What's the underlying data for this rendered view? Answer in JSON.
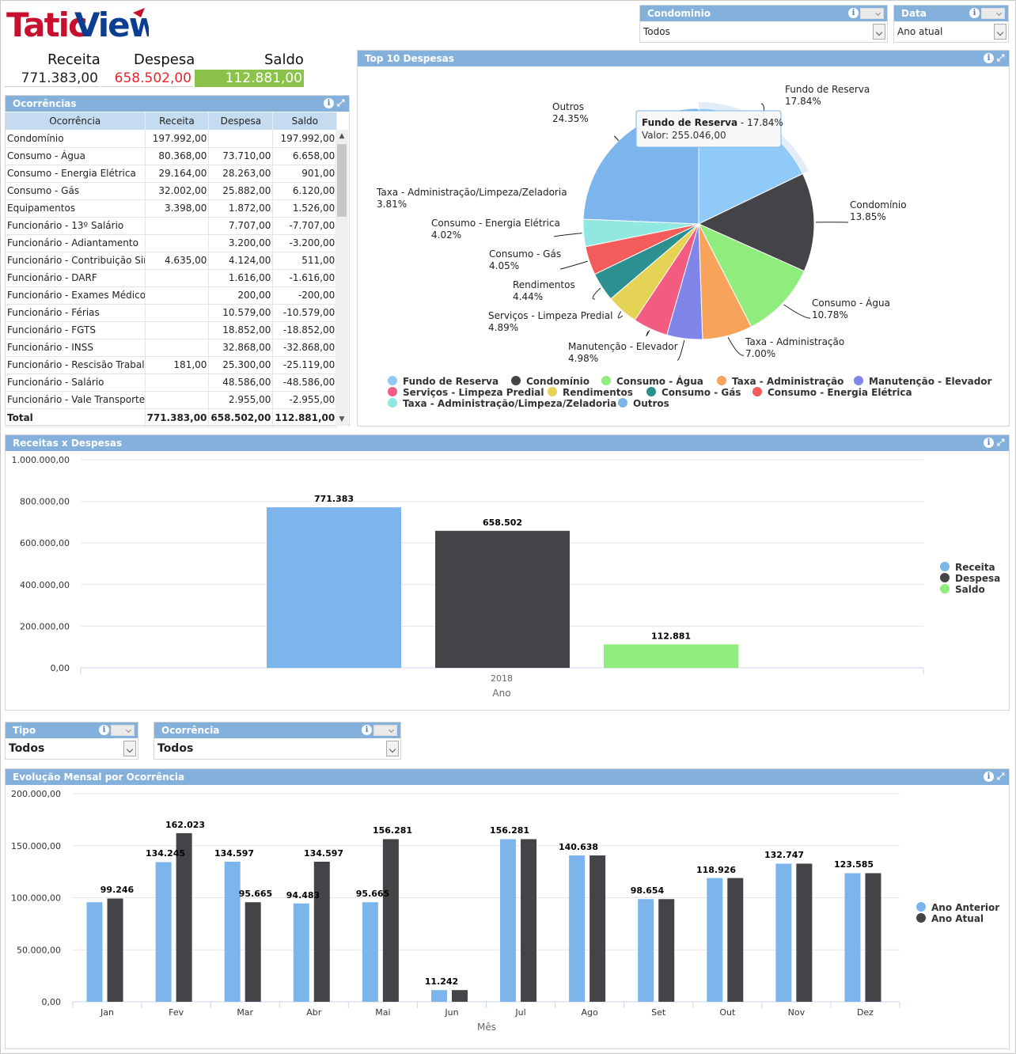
{
  "logo": {
    "part1": "Tatic",
    "part2": "View"
  },
  "filters": {
    "condominio": {
      "label": "Condominio",
      "value": "Todos"
    },
    "data": {
      "label": "Data",
      "value": "Ano atual"
    },
    "tipo": {
      "label": "Tipo",
      "value": "Todos"
    },
    "ocorrencia": {
      "label": "Ocorrência",
      "value": "Todos"
    }
  },
  "kpi": {
    "receita_label": "Receita",
    "receita_value": "771.383,00",
    "despesa_label": "Despesa",
    "despesa_value": "658.502,00",
    "saldo_label": "Saldo",
    "saldo_value": "112.881,00"
  },
  "panels": {
    "ocorrencias": "Ocorrências",
    "top10": "Top 10 Despesas",
    "receitas": "Receitas x Despesas",
    "evolucao": "Evolução Mensal por Ocorrência"
  },
  "icons": {
    "info": "info-icon",
    "expand": "expand-icon",
    "dropdown": "chevron-down-icon"
  },
  "table": {
    "headers": [
      "Ocorrência",
      "Receita",
      "Despesa",
      "Saldo"
    ],
    "rows": [
      [
        "Condomínio",
        "197.992,00",
        "",
        "197.992,00"
      ],
      [
        "Consumo - Água",
        "80.368,00",
        "73.710,00",
        "6.658,00"
      ],
      [
        "Consumo - Energia Elétrica",
        "29.164,00",
        "28.263,00",
        "901,00"
      ],
      [
        "Consumo - Gás",
        "32.002,00",
        "25.882,00",
        "6.120,00"
      ],
      [
        "Equipamentos",
        "3.398,00",
        "1.872,00",
        "1.526,00"
      ],
      [
        "Funcionário - 13º Salário",
        "",
        "7.707,00",
        "-7.707,00"
      ],
      [
        "Funcionário - Adiantamento",
        "",
        "3.200,00",
        "-3.200,00"
      ],
      [
        "Funcionário - Contribuição Sindic",
        "4.635,00",
        "4.124,00",
        "511,00"
      ],
      [
        "Funcionário - DARF",
        "",
        "1.616,00",
        "-1.616,00"
      ],
      [
        "Funcionário - Exames Médicos Pr",
        "",
        "200,00",
        "-200,00"
      ],
      [
        "Funcionário - Férias",
        "",
        "10.579,00",
        "-10.579,00"
      ],
      [
        "Funcionário - FGTS",
        "",
        "18.852,00",
        "-18.852,00"
      ],
      [
        "Funcionário - INSS",
        "",
        "32.868,00",
        "-32.868,00"
      ],
      [
        "Funcionário - Rescisão Trabalhist",
        "181,00",
        "25.300,00",
        "-25.119,00"
      ],
      [
        "Funcionário - Salário",
        "",
        "48.586,00",
        "-48.586,00"
      ],
      [
        "Funcionário - Vale Transporte",
        "",
        "2.955,00",
        "-2.955,00"
      ]
    ],
    "total": [
      "Total",
      "771.383,00",
      "658.502,00",
      "112.881,00"
    ]
  },
  "colors": {
    "header": "#84b1dc",
    "receita": "#7cb5ec",
    "despesa": "#434348",
    "saldo": "#90ed7d",
    "despesa_text": "#e8262b",
    "saldo_bg": "#8bc34a",
    "purple": "#8085e9",
    "pink": "#f15c80",
    "yellow": "#e4d354",
    "teal": "#2b908f",
    "red": "#f45b5b",
    "cyan": "#91e8e1",
    "orange": "#f7a35c"
  },
  "chart_data": [
    {
      "type": "pie",
      "title": "",
      "tooltip": {
        "title": "Fundo de Reserva",
        "pct": "17.84%",
        "value_label": "Valor: 255.046,00"
      },
      "slices": [
        {
          "name": "Fundo de Reserva",
          "pct": 17.84,
          "color": "#90caf9"
        },
        {
          "name": "Condomínio",
          "pct": 13.85,
          "color": "#434348"
        },
        {
          "name": "Consumo - Água",
          "pct": 10.78,
          "color": "#90ed7d"
        },
        {
          "name": "Taxa - Administração",
          "pct": 7.0,
          "color": "#f7a35c"
        },
        {
          "name": "Manutenção - Elevador",
          "pct": 4.98,
          "color": "#8085e9"
        },
        {
          "name": "Serviços - Limpeza Predial",
          "pct": 4.89,
          "color": "#f15c80"
        },
        {
          "name": "Rendimentos",
          "pct": 4.44,
          "color": "#e4d354"
        },
        {
          "name": "Consumo - Gás",
          "pct": 4.05,
          "color": "#2b908f"
        },
        {
          "name": "Consumo - Energia Elétrica",
          "pct": 4.02,
          "color": "#f45b5b"
        },
        {
          "name": "Taxa - Administração/Limpeza/Zeladoria",
          "pct": 3.81,
          "color": "#91e8e1"
        },
        {
          "name": "Outros",
          "pct": 24.35,
          "color": "#7cb5ec"
        }
      ],
      "labels": [
        {
          "name": "Fundo de Reserva",
          "pct": "17.84%"
        },
        {
          "name": "Condomínio",
          "pct": "13.85%"
        },
        {
          "name": "Consumo - Água",
          "pct": "10.78%"
        },
        {
          "name": "Taxa - Administração",
          "pct": "7.00%"
        },
        {
          "name": "Manutenção - Elevador",
          "pct": "4.98%"
        },
        {
          "name": "Serviços - Limpeza Predial",
          "pct": "4.89%"
        },
        {
          "name": "Rendimentos",
          "pct": "4.44%"
        },
        {
          "name": "Consumo - Gás",
          "pct": "4.05%"
        },
        {
          "name": "Consumo - Energia Elétrica",
          "pct": "4.02%"
        },
        {
          "name": "Taxa - Administração/Limpeza/Zeladoria",
          "pct": "3.81%"
        },
        {
          "name": "Outros",
          "pct": "24.35%"
        }
      ],
      "legend": [
        "Fundo de Reserva",
        "Condomínio",
        "Consumo - Água",
        "Taxa - Administração",
        "Manutenção - Elevador",
        "Serviços - Limpeza Predial",
        "Rendimentos",
        "Consumo - Gás",
        "Consumo - Energia Elétrica",
        "Taxa - Administração/Limpeza/Zeladoria",
        "Outros"
      ]
    },
    {
      "type": "bar",
      "xlabel": "Ano",
      "categories": [
        "2018"
      ],
      "yticks": [
        "0,00",
        "200.000,00",
        "400.000,00",
        "600.000,00",
        "800.000,00",
        "1.000.000,00"
      ],
      "ylim": [
        0,
        1000000
      ],
      "series": [
        {
          "name": "Receita",
          "values": [
            771383
          ],
          "label": "771.383",
          "color": "#7cb5ec"
        },
        {
          "name": "Despesa",
          "values": [
            658502
          ],
          "label": "658.502",
          "color": "#434348"
        },
        {
          "name": "Saldo",
          "values": [
            112881
          ],
          "label": "112.881",
          "color": "#90ed7d"
        }
      ]
    },
    {
      "type": "bar",
      "xlabel": "Mês",
      "categories": [
        "Jan",
        "Fev",
        "Mar",
        "Abr",
        "Mai",
        "Jun",
        "Jul",
        "Ago",
        "Set",
        "Out",
        "Nov",
        "Dez"
      ],
      "yticks": [
        "0,00",
        "50.000,00",
        "100.000,00",
        "150.000,00",
        "200.000,00"
      ],
      "ylim": [
        0,
        200000
      ],
      "series": [
        {
          "name": "Ano Anterior",
          "color": "#7cb5ec",
          "values": [
            95665,
            134245,
            134597,
            94483,
            95665,
            11242,
            156281,
            140638,
            98654,
            118926,
            132747,
            123585
          ]
        },
        {
          "name": "Ano Atual",
          "color": "#434348",
          "values": [
            99246,
            162023,
            95665,
            134597,
            156281,
            11242,
            156281,
            140638,
            98654,
            118926,
            132747,
            123585
          ]
        }
      ],
      "data_labels": [
        {
          "text": "99.246"
        },
        {
          "text": "134.245"
        },
        {
          "text": "162.023"
        },
        {
          "text": "134.597"
        },
        {
          "text": "95.665"
        },
        {
          "text": "94.483"
        },
        {
          "text": "134.597"
        },
        {
          "text": "95.665"
        },
        {
          "text": "156.281"
        },
        {
          "text": "11.242"
        },
        {
          "text": "156.281"
        },
        {
          "text": "140.638"
        },
        {
          "text": "98.654"
        },
        {
          "text": "118.926"
        },
        {
          "text": "132.747"
        },
        {
          "text": "123.585"
        }
      ]
    }
  ]
}
